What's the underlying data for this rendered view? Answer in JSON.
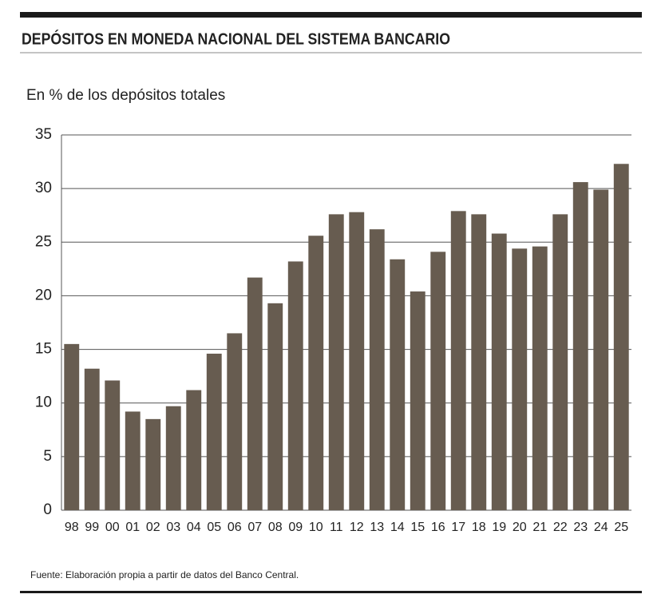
{
  "chart_data": {
    "type": "bar",
    "title": "DEPÓSITOS EN MONEDA NACIONAL DEL SISTEMA BANCARIO",
    "subtitle": "En % de los depósitos totales",
    "source": "Fuente: Elaboración propia a partir de datos del Banco Central.",
    "categories": [
      "98",
      "99",
      "00",
      "01",
      "02",
      "03",
      "04",
      "05",
      "06",
      "07",
      "08",
      "09",
      "10",
      "11",
      "12",
      "13",
      "14",
      "15",
      "16",
      "17",
      "18",
      "19",
      "20",
      "21",
      "22",
      "23",
      "24",
      "25"
    ],
    "values": [
      15.5,
      13.2,
      12.1,
      9.2,
      8.5,
      9.7,
      11.2,
      14.6,
      16.5,
      21.7,
      19.3,
      23.2,
      25.6,
      27.6,
      27.8,
      26.2,
      23.4,
      20.4,
      24.1,
      27.9,
      27.6,
      25.8,
      24.4,
      24.6,
      27.6,
      30.6,
      29.9,
      32.3
    ],
    "color": "#675c50",
    "ylim": [
      0,
      35
    ],
    "yticks": [
      0,
      5,
      10,
      15,
      20,
      25,
      30,
      35
    ],
    "grid": true
  }
}
